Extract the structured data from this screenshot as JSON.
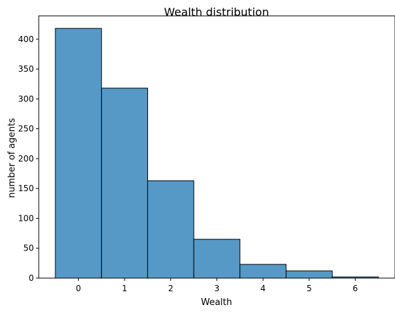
{
  "chart_data": {
    "type": "bar",
    "title": "Wealth distribution",
    "xlabel": "Wealth",
    "ylabel": "number of agents",
    "categories": [
      0,
      1,
      2,
      3,
      4,
      5,
      6
    ],
    "values": [
      418,
      318,
      163,
      65,
      23,
      12,
      2
    ],
    "xlim": [
      -0.86,
      6.86
    ],
    "ylim": [
      0,
      439
    ],
    "xticks": [
      0,
      1,
      2,
      3,
      4,
      5,
      6
    ],
    "yticks": [
      0,
      50,
      100,
      150,
      200,
      250,
      300,
      350,
      400
    ],
    "bar_color": "#5699c6",
    "edge_color": "#000000",
    "grid": false,
    "legend": "none"
  }
}
